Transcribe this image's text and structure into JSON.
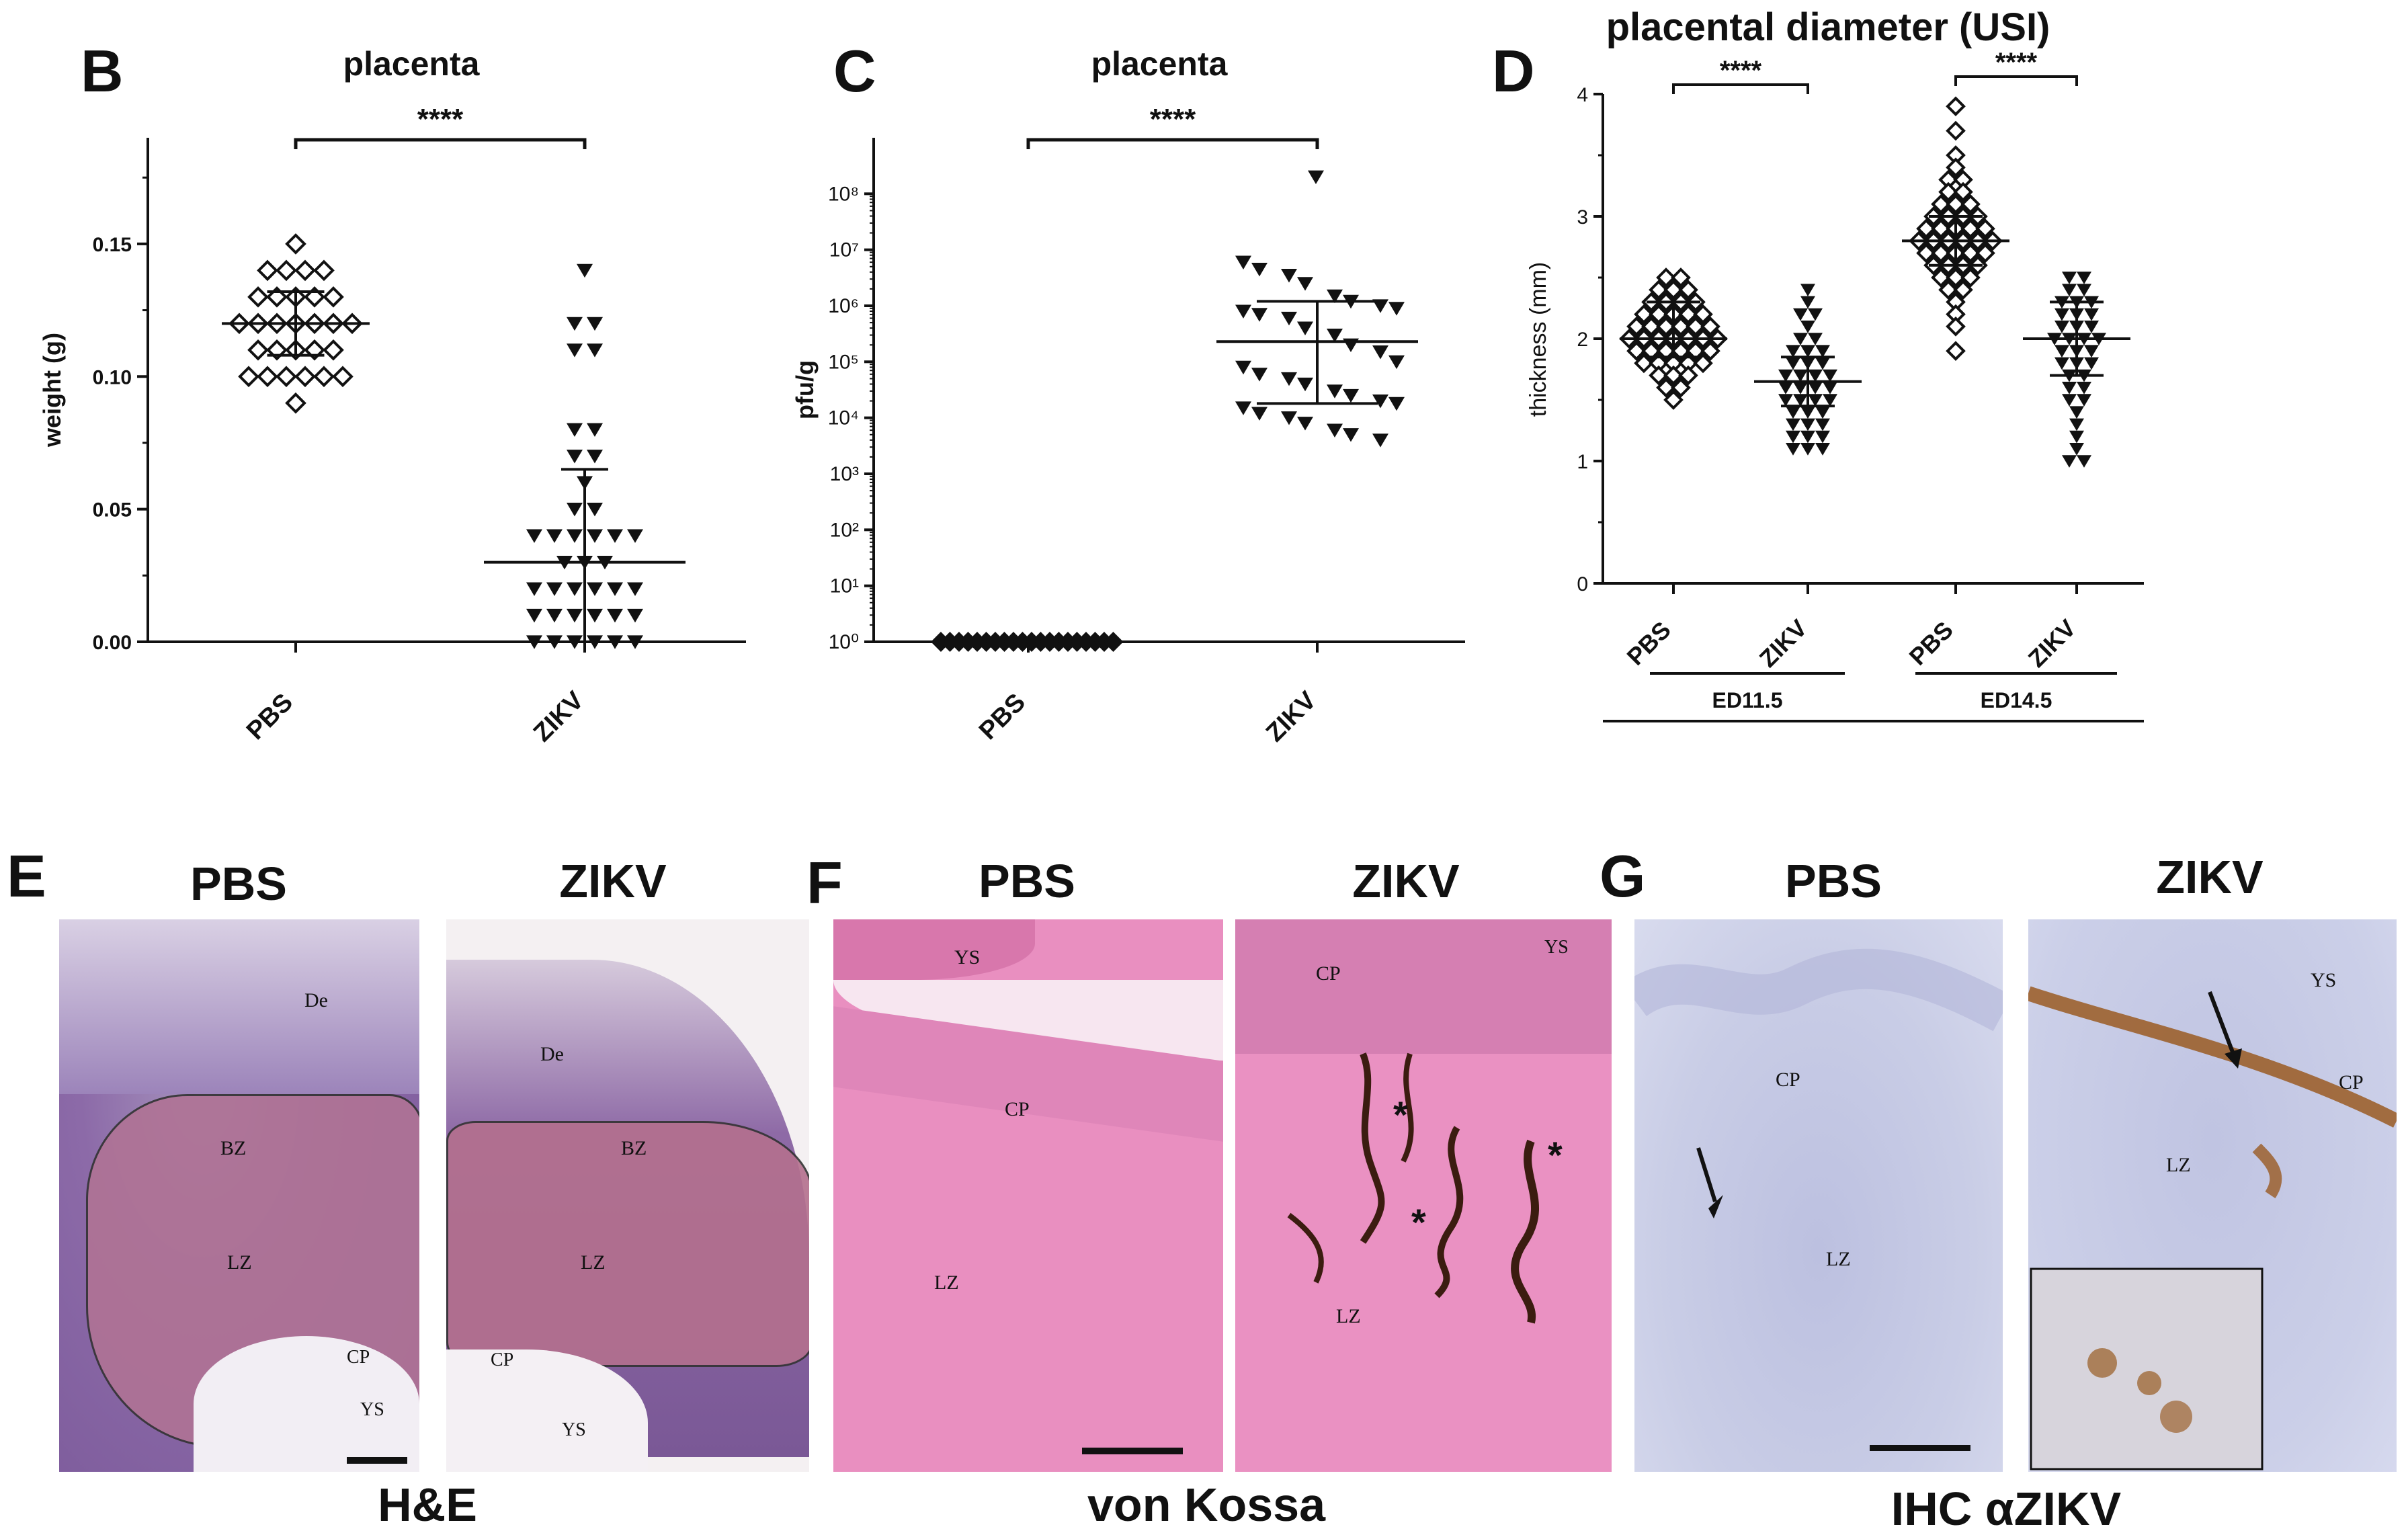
{
  "figure": {
    "panel_letters": [
      "B",
      "C",
      "D",
      "E",
      "F",
      "G"
    ],
    "colors": {
      "axis": "#111111",
      "he_bg": "#8a5f9e",
      "he_lz": "#b4708e",
      "vk_bg": "#e88cc0",
      "vk_deposit": "#3b1c10",
      "ihc_bg": "#c9cde6",
      "ihc_brown": "#9a5a22"
    }
  },
  "chart_data": [
    {
      "id": "B",
      "type": "scatter",
      "title": "placenta",
      "ylabel": "weight (g)",
      "xlabel": "",
      "ylim": [
        0,
        0.19
      ],
      "yticks": [
        "0.00",
        "0.05",
        "0.10",
        "0.15"
      ],
      "categories": [
        "PBS",
        "ZIKV"
      ],
      "significance": "****",
      "series": [
        {
          "name": "PBS",
          "marker": "diamond-open",
          "values": [
            0.15,
            0.14,
            0.14,
            0.14,
            0.14,
            0.13,
            0.13,
            0.13,
            0.13,
            0.13,
            0.12,
            0.12,
            0.12,
            0.12,
            0.12,
            0.12,
            0.12,
            0.11,
            0.11,
            0.11,
            0.11,
            0.11,
            0.1,
            0.1,
            0.1,
            0.1,
            0.1,
            0.1,
            0.09
          ],
          "mean": 0.12,
          "sd": [
            0.108,
            0.132
          ]
        },
        {
          "name": "ZIKV",
          "marker": "triangle-down-filled",
          "values": [
            0.14,
            0.12,
            0.12,
            0.11,
            0.11,
            0.08,
            0.08,
            0.07,
            0.07,
            0.06,
            0.05,
            0.05,
            0.04,
            0.04,
            0.04,
            0.04,
            0.04,
            0.04,
            0.03,
            0.03,
            0.03,
            0.02,
            0.02,
            0.02,
            0.02,
            0.02,
            0.02,
            0.01,
            0.01,
            0.01,
            0.01,
            0.01,
            0.01,
            0.0,
            0.0,
            0.0,
            0.0,
            0.0,
            0.0
          ],
          "mean": 0.03,
          "sd": [
            0.0,
            0.065
          ]
        }
      ]
    },
    {
      "id": "C",
      "type": "scatter",
      "title": "placenta",
      "ylabel": "pfu/g",
      "xlabel": "",
      "yscale": "log",
      "ylim": [
        1,
        1000000000
      ],
      "yticks": [
        "10⁰",
        "10¹",
        "10²",
        "10³",
        "10⁴",
        "10⁵",
        "10⁶",
        "10⁷",
        "10⁸"
      ],
      "categories": [
        "PBS",
        "ZIKV"
      ],
      "significance": "****",
      "series": [
        {
          "name": "PBS",
          "marker": "diamond-filled",
          "values": [
            1,
            1,
            1,
            1,
            1,
            1,
            1,
            1,
            1,
            1,
            1,
            1,
            1,
            1,
            1,
            1,
            1,
            1,
            1,
            1,
            1,
            1,
            1,
            1,
            1,
            1,
            1,
            1,
            1,
            1,
            1,
            1,
            1,
            1,
            1,
            1,
            1,
            1,
            1,
            1
          ]
        },
        {
          "name": "ZIKV",
          "marker": "triangle-down-filled",
          "values": [
            200000000,
            6000000,
            4500000,
            3500000,
            2500000,
            1500000,
            1200000,
            1000000,
            900000,
            800000,
            700000,
            600000,
            400000,
            300000,
            200000,
            150000,
            100000,
            80000,
            60000,
            50000,
            40000,
            30000,
            25000,
            20000,
            18000,
            15000,
            12000,
            10000,
            8000,
            6000,
            5000,
            4000
          ],
          "median": 230000,
          "iqr": [
            18000,
            1200000
          ]
        }
      ]
    },
    {
      "id": "D",
      "type": "scatter",
      "title": "placental diameter (USI)",
      "ylabel": "thickness (mm)",
      "xlabel": "",
      "ylim": [
        0,
        4
      ],
      "yticks": [
        "0",
        "1",
        "2",
        "3",
        "4"
      ],
      "categories": [
        "PBS",
        "ZIKV",
        "PBS",
        "ZIKV"
      ],
      "groups": [
        "ED11.5",
        "ED14.5"
      ],
      "significance": [
        "****",
        "****"
      ],
      "series": [
        {
          "name": "PBS ED11.5",
          "marker": "diamond-open",
          "mean": 2.0,
          "sd": [
            1.85,
            2.3
          ],
          "values": [
            2.5,
            2.5,
            2.4,
            2.4,
            2.4,
            2.3,
            2.3,
            2.3,
            2.3,
            2.2,
            2.2,
            2.2,
            2.2,
            2.2,
            2.1,
            2.1,
            2.1,
            2.1,
            2.1,
            2.1,
            2.0,
            2.0,
            2.0,
            2.0,
            2.0,
            2.0,
            2.0,
            1.9,
            1.9,
            1.9,
            1.9,
            1.9,
            1.9,
            1.8,
            1.8,
            1.8,
            1.8,
            1.8,
            1.7,
            1.7,
            1.7,
            1.6,
            1.6,
            1.5
          ]
        },
        {
          "name": "ZIKV ED11.5",
          "marker": "triangle-down-filled",
          "mean": 1.65,
          "sd": [
            1.45,
            1.85
          ],
          "values": [
            2.4,
            2.3,
            2.2,
            2.2,
            2.1,
            2.0,
            2.0,
            1.9,
            1.9,
            1.9,
            1.8,
            1.8,
            1.8,
            1.7,
            1.7,
            1.7,
            1.7,
            1.6,
            1.6,
            1.6,
            1.6,
            1.5,
            1.5,
            1.5,
            1.5,
            1.4,
            1.4,
            1.4,
            1.3,
            1.3,
            1.3,
            1.2,
            1.2,
            1.2,
            1.1,
            1.1,
            1.1
          ]
        },
        {
          "name": "PBS ED14.5",
          "marker": "diamond-open",
          "mean": 2.8,
          "sd": [
            2.6,
            3.0
          ],
          "values": [
            3.9,
            3.7,
            3.5,
            3.4,
            3.3,
            3.3,
            3.2,
            3.2,
            3.1,
            3.1,
            3.1,
            3.0,
            3.0,
            3.0,
            3.0,
            2.9,
            2.9,
            2.9,
            2.9,
            2.9,
            2.8,
            2.8,
            2.8,
            2.8,
            2.8,
            2.8,
            2.7,
            2.7,
            2.7,
            2.7,
            2.7,
            2.6,
            2.6,
            2.6,
            2.6,
            2.5,
            2.5,
            2.5,
            2.4,
            2.4,
            2.3,
            2.2,
            2.1,
            1.9
          ]
        },
        {
          "name": "ZIKV ED14.5",
          "marker": "triangle-down-filled",
          "mean": 2.0,
          "sd": [
            1.7,
            2.3
          ],
          "values": [
            2.5,
            2.5,
            2.4,
            2.4,
            2.3,
            2.3,
            2.3,
            2.2,
            2.2,
            2.2,
            2.1,
            2.1,
            2.1,
            2.0,
            2.0,
            2.0,
            2.0,
            1.9,
            1.9,
            1.9,
            1.8,
            1.8,
            1.8,
            1.7,
            1.7,
            1.6,
            1.6,
            1.5,
            1.5,
            1.4,
            1.3,
            1.2,
            1.1,
            1.0,
            1.0
          ]
        }
      ]
    }
  ],
  "micrographs": {
    "E": {
      "headers": [
        "PBS",
        "ZIKV"
      ],
      "stain": "H&E",
      "pbs_labels": [
        "De",
        "BZ",
        "LZ",
        "CP",
        "YS"
      ],
      "zikv_labels": [
        "De",
        "BZ",
        "LZ",
        "CP",
        "YS"
      ]
    },
    "F": {
      "headers": [
        "PBS",
        "ZIKV"
      ],
      "stain": "von Kossa",
      "pbs_labels": [
        "YS",
        "CP",
        "LZ"
      ],
      "zikv_labels": [
        "CP",
        "YS",
        "LZ",
        "*",
        "*",
        "*"
      ]
    },
    "G": {
      "headers": [
        "PBS",
        "ZIKV"
      ],
      "stain": "IHC αZIKV",
      "pbs_labels": [
        "CP",
        "LZ"
      ],
      "zikv_labels": [
        "YS",
        "CP",
        "LZ"
      ]
    }
  }
}
